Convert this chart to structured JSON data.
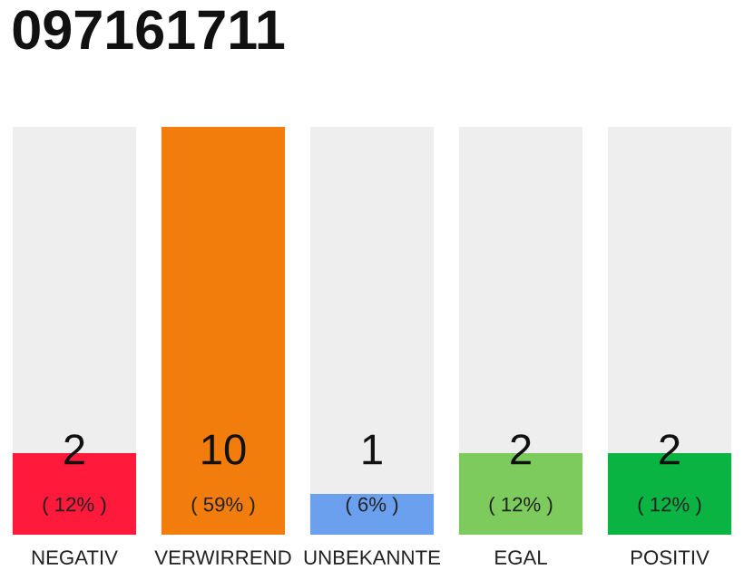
{
  "chart_data": {
    "type": "bar",
    "title": "097161711",
    "stacked": true,
    "categories": [
      "NEGATIV",
      "VERWIRREND",
      "UNBEKANNTE",
      "EGAL",
      "POSITIV"
    ],
    "series": [
      {
        "colors": [
          "#ff1a3c",
          "#f27d0c",
          "#6aa0ee",
          "#7dcb5c",
          "#09b443"
        ],
        "values": [
          2,
          10,
          1,
          2,
          2
        ],
        "value_labels": [
          "2\n( 12% )",
          "10\n( 59% )",
          "1\n( 6% )",
          "2\n( 12% )",
          "2\n( 12% )"
        ]
      },
      {
        "color": "#eeeeee",
        "values": [
          8,
          0,
          9,
          8,
          8
        ]
      }
    ],
    "grid": false,
    "legend": false
  }
}
